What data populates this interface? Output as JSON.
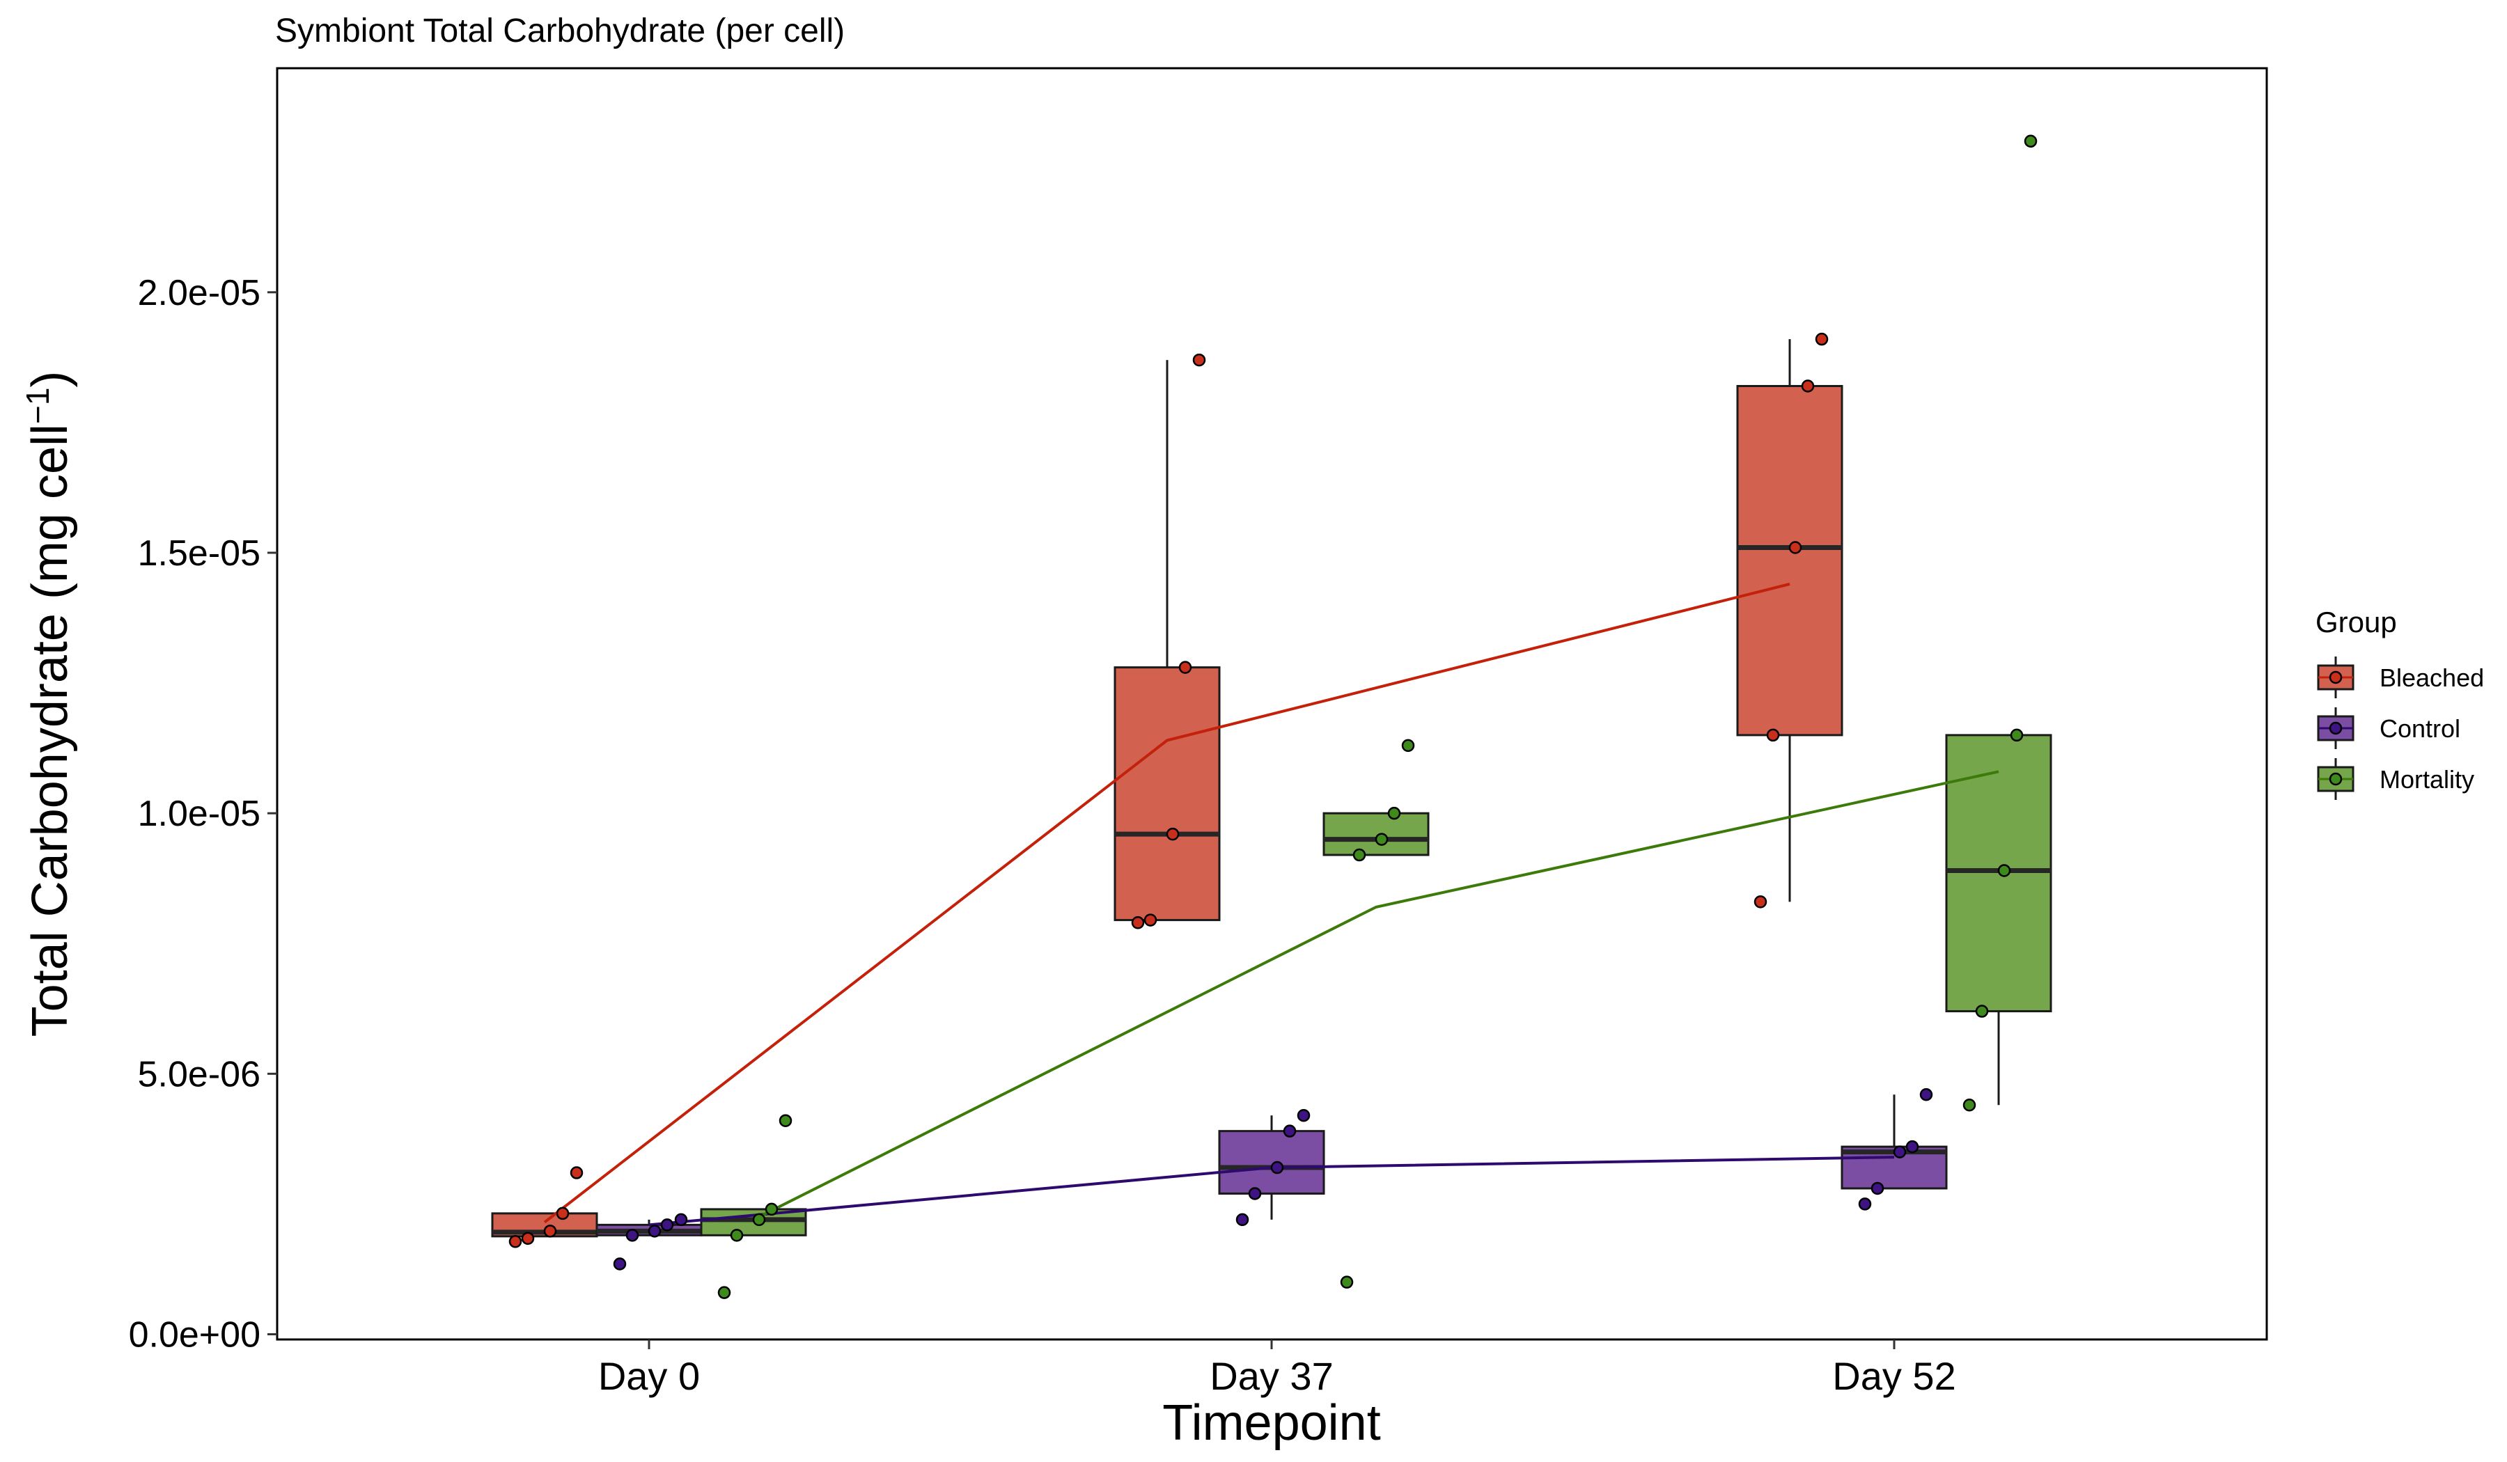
{
  "chart_data": {
    "type": "boxplot",
    "title": "Symbiont Total Carbohydrate (per cell)",
    "xlabel": "Timepoint",
    "ylabel_main": "Total Carbohydrate (mg cell",
    "ylabel_sup": "−1",
    "ylabel_close": ")",
    "ylim": [
      -1e-07,
      2.43e-05
    ],
    "y_ticks": [
      {
        "value": 0.0,
        "label": "0.0e+00"
      },
      {
        "value": 5e-06,
        "label": "5.0e-06"
      },
      {
        "value": 1e-05,
        "label": "1.0e-05"
      },
      {
        "value": 1.5e-05,
        "label": "1.5e-05"
      },
      {
        "value": 2e-05,
        "label": "2.0e-05"
      }
    ],
    "categories": [
      "Day 0",
      "Day 37",
      "Day 52"
    ],
    "legend": {
      "title": "Group",
      "position": "right"
    },
    "series": [
      {
        "name": "Bleached",
        "fill": "#d36150",
        "line_color": "#c4210b",
        "point_color": "#c9301c",
        "boxes": [
          {
            "q1": 1.88e-06,
            "median": 1.96e-06,
            "q3": 2.32e-06,
            "lower_whisker": 1.88e-06,
            "upper_whisker": 2.32e-06
          },
          {
            "q1": 7.95e-06,
            "median": 9.6e-06,
            "q3": 1.28e-05,
            "lower_whisker": 7.95e-06,
            "upper_whisker": 1.87e-05
          },
          {
            "q1": 1.15e-05,
            "median": 1.51e-05,
            "q3": 1.82e-05,
            "lower_whisker": 8.3e-06,
            "upper_whisker": 1.91e-05
          }
        ],
        "means": [
          2.15e-06,
          1.14e-05,
          1.44e-05
        ],
        "points": [
          [
            1.78e-06,
            1.84e-06,
            1.98e-06,
            2.32e-06,
            3.1e-06
          ],
          [
            7.9e-06,
            7.95e-06,
            9.6e-06,
            1.28e-05,
            1.87e-05
          ],
          [
            8.3e-06,
            1.15e-05,
            1.51e-05,
            1.82e-05,
            1.91e-05
          ]
        ]
      },
      {
        "name": "Control",
        "fill": "#7b4ea3",
        "line_color": "#2e0a6e",
        "point_color": "#3d1482",
        "boxes": [
          {
            "q1": 1.9e-06,
            "median": 1.98e-06,
            "q3": 2.1e-06,
            "lower_whisker": 1.9e-06,
            "upper_whisker": 2.2e-06
          },
          {
            "q1": 2.7e-06,
            "median": 3.2e-06,
            "q3": 3.9e-06,
            "lower_whisker": 2.2e-06,
            "upper_whisker": 4.2e-06
          },
          {
            "q1": 2.8e-06,
            "median": 3.5e-06,
            "q3": 3.6e-06,
            "lower_whisker": 2.8e-06,
            "upper_whisker": 4.6e-06
          }
        ],
        "means": [
          2.1e-06,
          3.2e-06,
          3.4e-06
        ],
        "points": [
          [
            1.35e-06,
            1.9e-06,
            1.98e-06,
            2.1e-06,
            2.2e-06
          ],
          [
            2.2e-06,
            2.7e-06,
            3.2e-06,
            3.9e-06,
            4.2e-06
          ],
          [
            2.5e-06,
            2.8e-06,
            3.5e-06,
            3.6e-06,
            4.6e-06
          ]
        ]
      },
      {
        "name": "Mortality",
        "fill": "#75a64b",
        "line_color": "#3c7a0a",
        "point_color": "#3f8a1c",
        "boxes": [
          {
            "q1": 1.9e-06,
            "median": 2.2e-06,
            "q3": 2.4e-06,
            "lower_whisker": 1.9e-06,
            "upper_whisker": 2.4e-06
          },
          {
            "q1": 9.2e-06,
            "median": 9.5e-06,
            "q3": 1e-05,
            "lower_whisker": 9.2e-06,
            "upper_whisker": 1e-05
          },
          {
            "q1": 6.2e-06,
            "median": 8.9e-06,
            "q3": 1.15e-05,
            "lower_whisker": 4.4e-06,
            "upper_whisker": 1.15e-05
          }
        ],
        "means": [
          2.2e-06,
          8.2e-06,
          1.08e-05
        ],
        "points": [
          [
            8e-07,
            1.9e-06,
            2.2e-06,
            2.4e-06,
            4.1e-06
          ],
          [
            1e-06,
            9.2e-06,
            9.5e-06,
            1e-05,
            1.13e-05
          ],
          [
            4.4e-06,
            6.2e-06,
            8.9e-06,
            1.15e-05,
            2.29e-05
          ]
        ]
      }
    ]
  }
}
